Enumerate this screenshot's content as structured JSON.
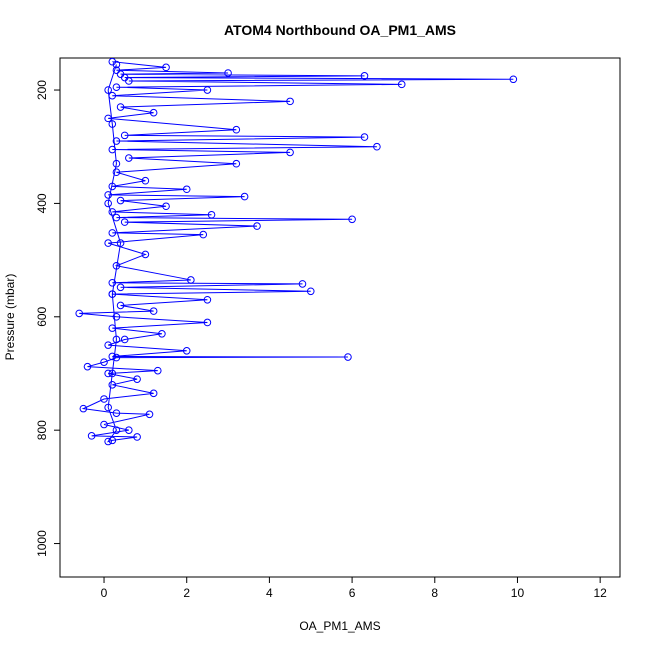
{
  "chart_data": {
    "type": "scatter-line",
    "title": "ATOM4 Northbound OA_PM1_AMS",
    "x_label": "OA_PM1_AMS",
    "y_label": "Pressure (mbar)",
    "x": [
      0.2,
      1.5,
      0.3,
      3.0,
      0.4,
      6.3,
      0.5,
      9.9,
      0.6,
      7.2,
      0.3,
      2.5,
      0.2,
      4.5,
      0.4,
      1.2,
      0.1,
      3.2,
      0.5,
      6.3,
      0.3,
      6.6,
      0.2,
      4.5,
      0.6,
      3.2,
      0.3,
      1.0,
      0.2,
      2.0,
      0.1,
      3.4,
      0.4,
      1.5,
      0.2,
      2.6,
      0.3,
      6.0,
      0.5,
      3.7,
      0.2,
      2.4,
      0.1,
      1.0,
      0.3,
      2.1,
      0.2,
      4.8,
      0.4,
      5.0,
      0.2,
      2.5,
      0.4,
      1.2,
      -0.6,
      0.3,
      2.5,
      0.2,
      1.4,
      0.5,
      0.1,
      2.0,
      0.2,
      5.9,
      0.3,
      0.0,
      -0.4,
      1.3,
      0.1,
      0.8,
      0.2,
      1.2,
      0.0,
      -0.5,
      0.3,
      1.1,
      0.0,
      0.6,
      -0.3,
      0.8,
      0.2,
      0.1,
      0.3,
      0.1,
      0.2,
      0.3,
      0.2,
      0.4,
      0.1,
      0.3,
      0.2,
      0.1,
      0.3
    ],
    "series": [
      {
        "color": "#0000ff",
        "values": [
          150,
          160,
          165,
          170,
          172,
          175,
          178,
          181,
          184,
          190,
          195,
          200,
          210,
          220,
          230,
          240,
          250,
          270,
          280,
          283,
          290,
          300,
          305,
          310,
          320,
          330,
          345,
          360,
          370,
          375,
          385,
          388,
          395,
          405,
          415,
          420,
          425,
          428,
          433,
          440,
          452,
          455,
          470,
          490,
          510,
          535,
          540,
          542,
          548,
          555,
          560,
          570,
          580,
          590,
          594,
          600,
          610,
          620,
          630,
          640,
          650,
          660,
          670,
          671,
          672,
          680,
          688,
          695,
          700,
          710,
          720,
          735,
          745,
          762,
          770,
          772,
          790,
          800,
          810,
          812,
          818,
          820,
          800,
          760,
          700,
          640,
          560,
          470,
          400,
          330,
          260,
          200,
          155
        ]
      }
    ],
    "xlim": [
      -1.065,
      12.48
    ],
    "ylim": [
      1059,
      143.5
    ],
    "xticks": [
      0,
      2,
      4,
      6,
      8,
      10,
      12
    ],
    "yticks": [
      200,
      400,
      600,
      800,
      1000
    ]
  }
}
